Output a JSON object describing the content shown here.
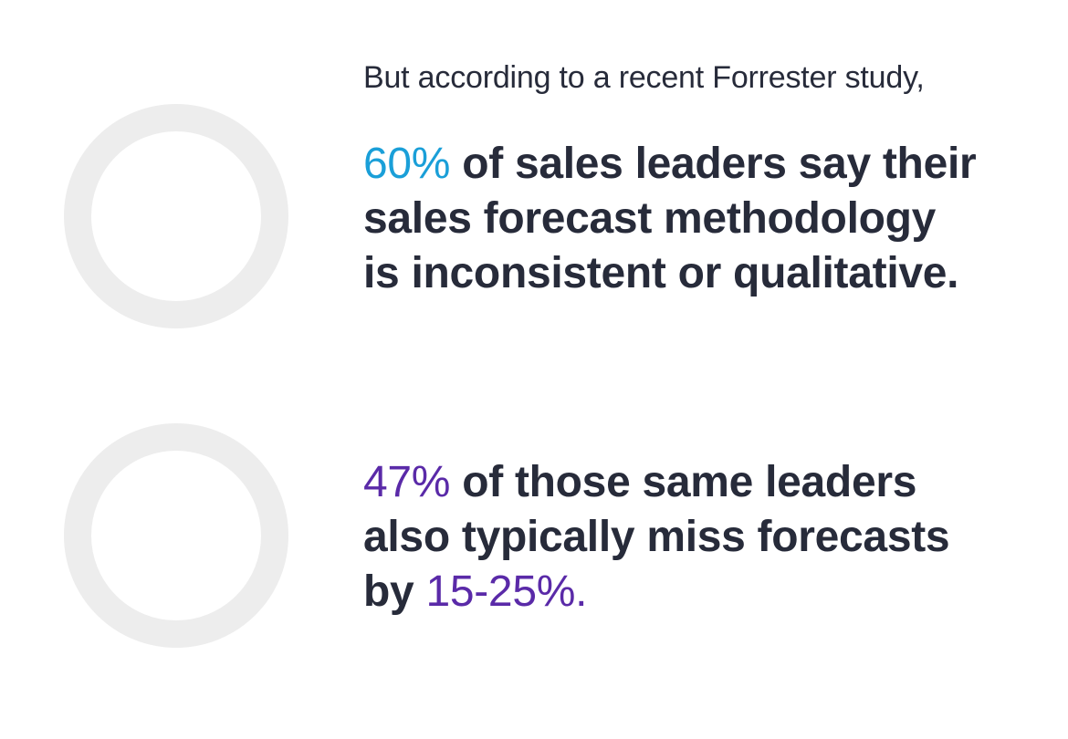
{
  "intro": "But according to a recent Forrester study,",
  "stat1": {
    "highlight": "60%",
    "line1_rest": " of sales leaders say their",
    "line2": "sales forecast methodology",
    "line3": "is inconsistent or qualitative.",
    "highlight_color": "#1a9fd8"
  },
  "stat2": {
    "highlight": "47%",
    "line1_rest": " of those same leaders",
    "line2": "also typically miss forecasts",
    "line3_prefix": "by ",
    "line3_highlight": "15-25%.",
    "highlight_color": "#5a2aa8"
  },
  "colors": {
    "text": "#272b3a",
    "ring": "#ededed"
  }
}
